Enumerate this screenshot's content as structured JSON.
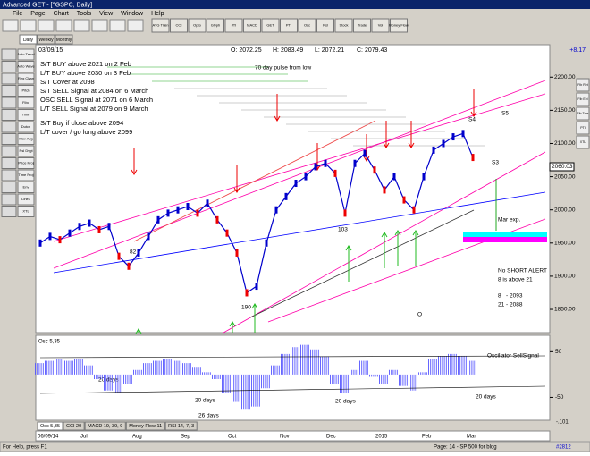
{
  "window": {
    "title": "Advanced GET - [^GSPC, Daily]",
    "menu": [
      "File",
      "Page",
      "Chart",
      "Tools",
      "View",
      "Window",
      "Help"
    ],
    "toolbar": [
      "ATG Train",
      "CCI",
      "Opto",
      "Glyph",
      "JTI",
      "MACD",
      "GET",
      "PTI",
      "Osc",
      "Rsl",
      "Stock",
      "Trade",
      "Vol",
      "Money Flow"
    ],
    "period_tabs": [
      "Daily",
      "Weekly",
      "Monthly"
    ],
    "left_tools": [
      "Auto Trend",
      "Auto Wave",
      "Reg Chan",
      "Pitch",
      "Fibo",
      "Time",
      "Dutch",
      "Mov Avg",
      "Rsl Dvgt",
      "Price Proj",
      "Time Proj",
      "Env",
      "Lines",
      "XTL"
    ],
    "right_tools": [
      "Fib Ret",
      "Fib Ext",
      "Fib Tms",
      "PTI",
      "XTL"
    ]
  },
  "chart": {
    "date_label": "03/09/15",
    "open": "O: 2072.25",
    "high": "H: 2083.49",
    "low": "L: 2072.21",
    "close": "C: 2079.43",
    "change": "+8.17",
    "price_axis": {
      "ylim": [
        2230,
        1815
      ],
      "ticks": [
        {
          "value": 2200,
          "label": "2200.00"
        },
        {
          "value": 2150,
          "label": "2150.00"
        },
        {
          "value": 2100,
          "label": "2100.00"
        },
        {
          "value": 2050,
          "label": "2050.00"
        },
        {
          "value": 2000,
          "label": "2000.00"
        },
        {
          "value": 1950,
          "label": "1950.00"
        },
        {
          "value": 1900,
          "label": "1900.00"
        },
        {
          "value": 1850,
          "label": "1850.00"
        }
      ]
    },
    "last_price_label": "2060.03",
    "closes": [
      1950,
      1960,
      1955,
      1965,
      1975,
      1980,
      1970,
      1975,
      1930,
      1915,
      1935,
      1960,
      1985,
      1995,
      2000,
      2005,
      1995,
      2010,
      1985,
      1965,
      1935,
      1875,
      1885,
      1950,
      2000,
      2020,
      2040,
      2050,
      2065,
      2070,
      2055,
      1995,
      2070,
      2085,
      2060,
      2030,
      2050,
      2015,
      2000,
      2050,
      2090,
      2100,
      2110,
      2115,
      2079
    ],
    "annotations": [
      "S/T BUY above 2021 on 2 Feb",
      "L/T BUY above 2030 on 3 Feb",
      "S/T Cover at 2098",
      "S/T SELL Signal at 2084 on 6 March",
      "OSC SELL Signal at 2071 on 6 March",
      "L/T SELL Signal at 2079 on 9 March",
      "S/T Buy if close above 2094",
      "L/T cover / go long above 2099",
      "70 day pulse from low",
      "S4",
      "S5",
      "S3",
      "82",
      "103",
      "190",
      "O",
      "Mar exp.",
      "No SHORT ALERT",
      "8 is above 21",
      "8   - 2093",
      "21 - 2088",
      "Oscillator SellSignal",
      "20 days",
      "20 days",
      "26 days",
      "20 days",
      "20 days"
    ],
    "osc": {
      "label": "Osc 5,35",
      "ylim": [
        80,
        -100
      ],
      "ticks": [
        50,
        -50
      ],
      "corner_label": "-.101",
      "values": [
        25,
        30,
        35,
        30,
        35,
        20,
        -10,
        -35,
        -40,
        -20,
        10,
        25,
        30,
        35,
        30,
        25,
        15,
        5,
        -10,
        -40,
        -60,
        -75,
        -70,
        -30,
        20,
        45,
        60,
        65,
        55,
        40,
        -20,
        -40,
        10,
        30,
        -5,
        -20,
        10,
        -25,
        -35,
        5,
        35,
        40,
        45,
        40,
        30
      ]
    },
    "indicator_tabs": [
      "Osc 5,35",
      "CCI 20",
      "MACD 19, 39, 9",
      "Money Flow 11",
      "RSI 14, 7, 3"
    ],
    "date_axis": [
      "06/09/14",
      "Jul",
      "Aug",
      "Sep",
      "Oct",
      "Nov",
      "Dec",
      "2015",
      "Feb",
      "Mar"
    ]
  },
  "status": [
    "For Help, press F1",
    "Page: 14 - SP 500 for blog",
    "#2812"
  ]
}
